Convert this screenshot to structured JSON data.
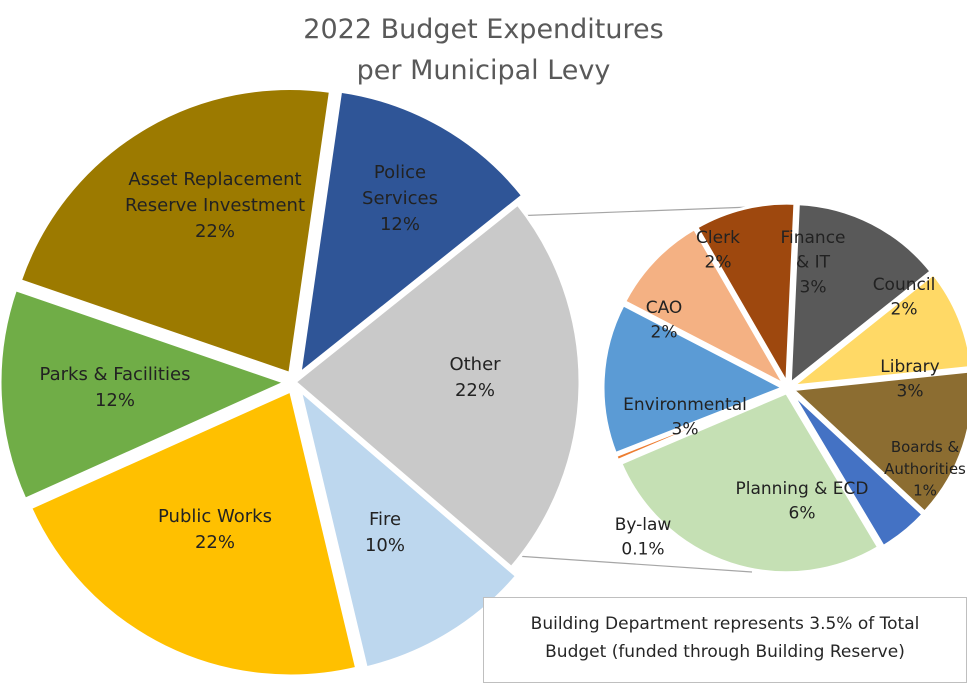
{
  "title": {
    "line1": "2022 Budget Expenditures",
    "line2": "per Municipal Levy"
  },
  "note": {
    "line1": "Building Department represents 3.5% of Total",
    "line2": "Budget (funded through Building Reserve)"
  },
  "chart_data": [
    {
      "type": "pie",
      "title": "2022 Budget Expenditures per Municipal Levy",
      "slices": [
        {
          "label": "Asset Replacement Reserve Investment",
          "label_lines": [
            "Asset Replacement",
            "Reserve Investment"
          ],
          "percent_text": "22%",
          "value": 22,
          "color": "#9C7A00"
        },
        {
          "label": "Police Services",
          "label_lines": [
            "Police",
            "Services"
          ],
          "percent_text": "12%",
          "value": 12,
          "color": "#2F5597"
        },
        {
          "label": "Other",
          "label_lines": [
            "Other"
          ],
          "percent_text": "22%",
          "value": 22,
          "color": "#C9C9C9"
        },
        {
          "label": "Fire",
          "label_lines": [
            "Fire"
          ],
          "percent_text": "10%",
          "value": 10,
          "color": "#BDD7EE"
        },
        {
          "label": "Public Works",
          "label_lines": [
            "Public Works"
          ],
          "percent_text": "22%",
          "value": 22,
          "color": "#FFC000"
        },
        {
          "label": "Parks & Facilities",
          "label_lines": [
            "Parks & Facilities"
          ],
          "percent_text": "12%",
          "value": 12,
          "color": "#70AD47"
        }
      ]
    },
    {
      "type": "pie",
      "title": "",
      "breakdown_of": "Other",
      "slices": [
        {
          "label": "Clerk",
          "label_lines": [
            "Clerk"
          ],
          "percent_text": "2%",
          "value": 2,
          "color": "#9E480E"
        },
        {
          "label": "Finance & IT",
          "label_lines": [
            "Finance",
            "& IT"
          ],
          "percent_text": "3%",
          "value": 3,
          "color": "#595959"
        },
        {
          "label": "Council",
          "label_lines": [
            "Council"
          ],
          "percent_text": "2%",
          "value": 2,
          "color": "#FFD966"
        },
        {
          "label": "Library",
          "label_lines": [
            "Library"
          ],
          "percent_text": "3%",
          "value": 3,
          "color": "#8C6D31"
        },
        {
          "label": "Boards & Authorities",
          "label_lines": [
            "Boards &",
            "Authorities"
          ],
          "percent_text": "1%",
          "value": 1,
          "color": "#4472C4"
        },
        {
          "label": "Planning & ECD",
          "label_lines": [
            "Planning & ECD"
          ],
          "percent_text": "6%",
          "value": 6,
          "color": "#C5E0B4"
        },
        {
          "label": "By-law",
          "label_lines": [
            "By-law"
          ],
          "percent_text": "0.1%",
          "value": 0.1,
          "color": "#ED7D31"
        },
        {
          "label": "Environmental",
          "label_lines": [
            "Environmental"
          ],
          "percent_text": "3%",
          "value": 3,
          "color": "#5B9BD5"
        },
        {
          "label": "CAO",
          "label_lines": [
            "CAO"
          ],
          "percent_text": "2%",
          "value": 2,
          "color": "#F4B183"
        }
      ]
    }
  ]
}
